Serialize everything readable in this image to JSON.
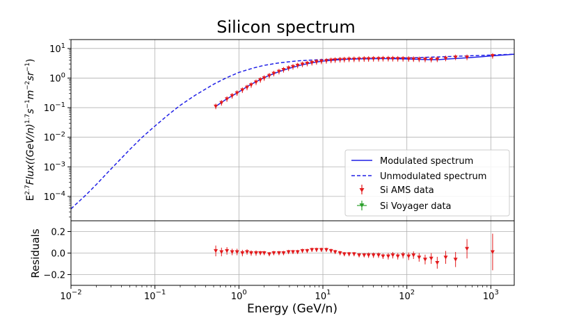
{
  "chart_data": [
    {
      "type": "line",
      "title": "Silicon spectrum",
      "xlabel": "Energy (GeV/n)",
      "ylabel": {
        "pre": "E",
        "exp1": "2.7",
        "mid1": "Flux((GeV/n)",
        "exp2": "1.7",
        "mid2": "s",
        "exp3": "−1",
        "mid3": "m",
        "exp4": "−2",
        "mid4": "sr",
        "exp5": "−1",
        "post": ")"
      },
      "xscale": "log",
      "yscale": "log",
      "xlim": [
        0.01,
        1900
      ],
      "ylim": [
        1.5e-05,
        20
      ],
      "x_ticks": [
        {
          "base": "10",
          "exp": "−2",
          "value": 0.01
        },
        {
          "base": "10",
          "exp": "−1",
          "value": 0.1
        },
        {
          "base": "10",
          "exp": "0",
          "value": 1
        },
        {
          "base": "10",
          "exp": "1",
          "value": 10
        },
        {
          "base": "10",
          "exp": "2",
          "value": 100
        },
        {
          "base": "10",
          "exp": "3",
          "value": 1000
        }
      ],
      "y_ticks": [
        {
          "base": "10",
          "exp": "−4",
          "value": 0.0001
        },
        {
          "base": "10",
          "exp": "−3",
          "value": 0.001
        },
        {
          "base": "10",
          "exp": "−2",
          "value": 0.01
        },
        {
          "base": "10",
          "exp": "−1",
          "value": 0.1
        },
        {
          "base": "10",
          "exp": "0",
          "value": 1
        },
        {
          "base": "10",
          "exp": "1",
          "value": 10
        }
      ],
      "grid": true,
      "legend_position": "bottom-right",
      "legend": [
        {
          "label": "Modulated spectrum",
          "style": "solid-line",
          "color": "#1f1fe6"
        },
        {
          "label": "Unmodulated spectrum",
          "style": "dashed-line",
          "color": "#1f1fe6"
        },
        {
          "label": "Si AMS data",
          "style": "marker",
          "color": "#e31a1c"
        },
        {
          "label": "Si Voyager data",
          "style": "marker",
          "color": "#2ca02c"
        }
      ],
      "series": [
        {
          "name": "Modulated spectrum",
          "x": [
            0.53,
            0.6,
            0.7,
            0.85,
            1.0,
            1.3,
            1.7,
            2.2,
            3.0,
            4.0,
            5.5,
            7.5,
            10,
            15,
            20,
            30,
            50,
            80,
            120,
            180,
            240,
            300,
            500,
            800,
            1000,
            1900
          ],
          "y": [
            0.11,
            0.14,
            0.19,
            0.26,
            0.34,
            0.55,
            0.82,
            1.17,
            1.65,
            2.15,
            2.75,
            3.3,
            3.75,
            4.15,
            4.35,
            4.5,
            4.55,
            4.5,
            4.35,
            4.2,
            4.2,
            4.4,
            4.8,
            5.3,
            5.6,
            6.4
          ]
        },
        {
          "name": "Unmodulated spectrum",
          "x": [
            0.01,
            0.015,
            0.02,
            0.03,
            0.05,
            0.07,
            0.1,
            0.15,
            0.2,
            0.3,
            0.5,
            0.7,
            1.0,
            1.5,
            2,
            3,
            5,
            7,
            10,
            20,
            50,
            100,
            200,
            500,
            1000,
            1900
          ],
          "y": [
            3.8e-05,
            0.00011,
            0.00025,
            0.00085,
            0.0038,
            0.0098,
            0.024,
            0.063,
            0.12,
            0.26,
            0.62,
            1.0,
            1.55,
            2.2,
            2.7,
            3.25,
            3.8,
            4.05,
            4.2,
            4.4,
            4.6,
            4.8,
            5.1,
            5.6,
            6.0,
            6.4
          ]
        },
        {
          "name": "Si AMS data",
          "x": [
            0.53,
            0.62,
            0.72,
            0.83,
            0.95,
            1.1,
            1.25,
            1.4,
            1.6,
            1.8,
            2.0,
            2.3,
            2.6,
            3.0,
            3.4,
            3.9,
            4.4,
            5.0,
            5.7,
            6.5,
            7.4,
            8.4,
            9.6,
            11,
            12.5,
            14,
            16,
            18,
            20.5,
            23.5,
            27,
            31,
            35,
            40,
            46,
            52,
            60,
            68,
            78,
            90,
            105,
            120,
            140,
            165,
            195,
            230,
            290,
            380,
            520,
            1050
          ],
          "y": [
            0.11,
            0.145,
            0.195,
            0.25,
            0.31,
            0.39,
            0.48,
            0.58,
            0.72,
            0.86,
            1.0,
            1.2,
            1.42,
            1.65,
            1.9,
            2.15,
            2.4,
            2.65,
            2.9,
            3.1,
            3.3,
            3.5,
            3.65,
            3.8,
            3.95,
            4.05,
            4.15,
            4.2,
            4.3,
            4.3,
            4.35,
            4.4,
            4.4,
            4.45,
            4.45,
            4.5,
            4.5,
            4.5,
            4.45,
            4.45,
            4.4,
            4.35,
            4.3,
            4.25,
            4.2,
            4.3,
            4.6,
            5.0,
            5.0,
            5.6
          ]
        },
        {
          "name": "Si Voyager data",
          "x": [],
          "y": []
        }
      ]
    },
    {
      "type": "scatter",
      "ylabel": "Residuals",
      "xlabel": "Energy (GeV/n)",
      "xscale": "log",
      "xlim": [
        0.01,
        1900
      ],
      "ylim": [
        -0.3,
        0.3
      ],
      "y_ticks": [
        "0.2",
        "0.0",
        "−0.2"
      ],
      "y_tick_values": [
        0.2,
        0.0,
        -0.2
      ],
      "grid": true,
      "series": [
        {
          "name": "Si AMS residuals",
          "x": [
            0.53,
            0.62,
            0.72,
            0.83,
            0.95,
            1.1,
            1.25,
            1.4,
            1.6,
            1.8,
            2.0,
            2.3,
            2.6,
            3.0,
            3.4,
            3.9,
            4.4,
            5.0,
            5.7,
            6.5,
            7.4,
            8.4,
            9.6,
            11,
            12.5,
            14,
            16,
            18,
            20.5,
            23.5,
            27,
            31,
            35,
            40,
            46,
            52,
            60,
            68,
            78,
            90,
            105,
            120,
            140,
            165,
            195,
            230,
            290,
            380,
            520,
            1050
          ],
          "y": [
            0.02,
            0.01,
            0.02,
            0.01,
            0.01,
            0.0,
            0.01,
            0.0,
            0.0,
            0.0,
            0.0,
            -0.01,
            0.0,
            0.0,
            0.0,
            0.01,
            0.01,
            0.01,
            0.02,
            0.02,
            0.03,
            0.03,
            0.03,
            0.03,
            0.02,
            0.01,
            0.0,
            -0.01,
            -0.01,
            -0.01,
            -0.02,
            -0.02,
            -0.02,
            -0.02,
            -0.02,
            -0.03,
            -0.03,
            -0.02,
            -0.03,
            -0.02,
            -0.03,
            -0.02,
            -0.04,
            -0.06,
            -0.05,
            -0.09,
            -0.04,
            -0.06,
            0.04,
            0.01
          ],
          "err": [
            0.05,
            0.04,
            0.035,
            0.03,
            0.03,
            0.03,
            0.025,
            0.025,
            0.025,
            0.02,
            0.02,
            0.02,
            0.02,
            0.02,
            0.02,
            0.02,
            0.02,
            0.02,
            0.02,
            0.02,
            0.02,
            0.02,
            0.02,
            0.02,
            0.02,
            0.02,
            0.02,
            0.02,
            0.02,
            0.02,
            0.02,
            0.02,
            0.025,
            0.025,
            0.025,
            0.025,
            0.03,
            0.03,
            0.03,
            0.03,
            0.035,
            0.035,
            0.04,
            0.045,
            0.05,
            0.055,
            0.06,
            0.07,
            0.09,
            0.17
          ]
        }
      ]
    }
  ]
}
